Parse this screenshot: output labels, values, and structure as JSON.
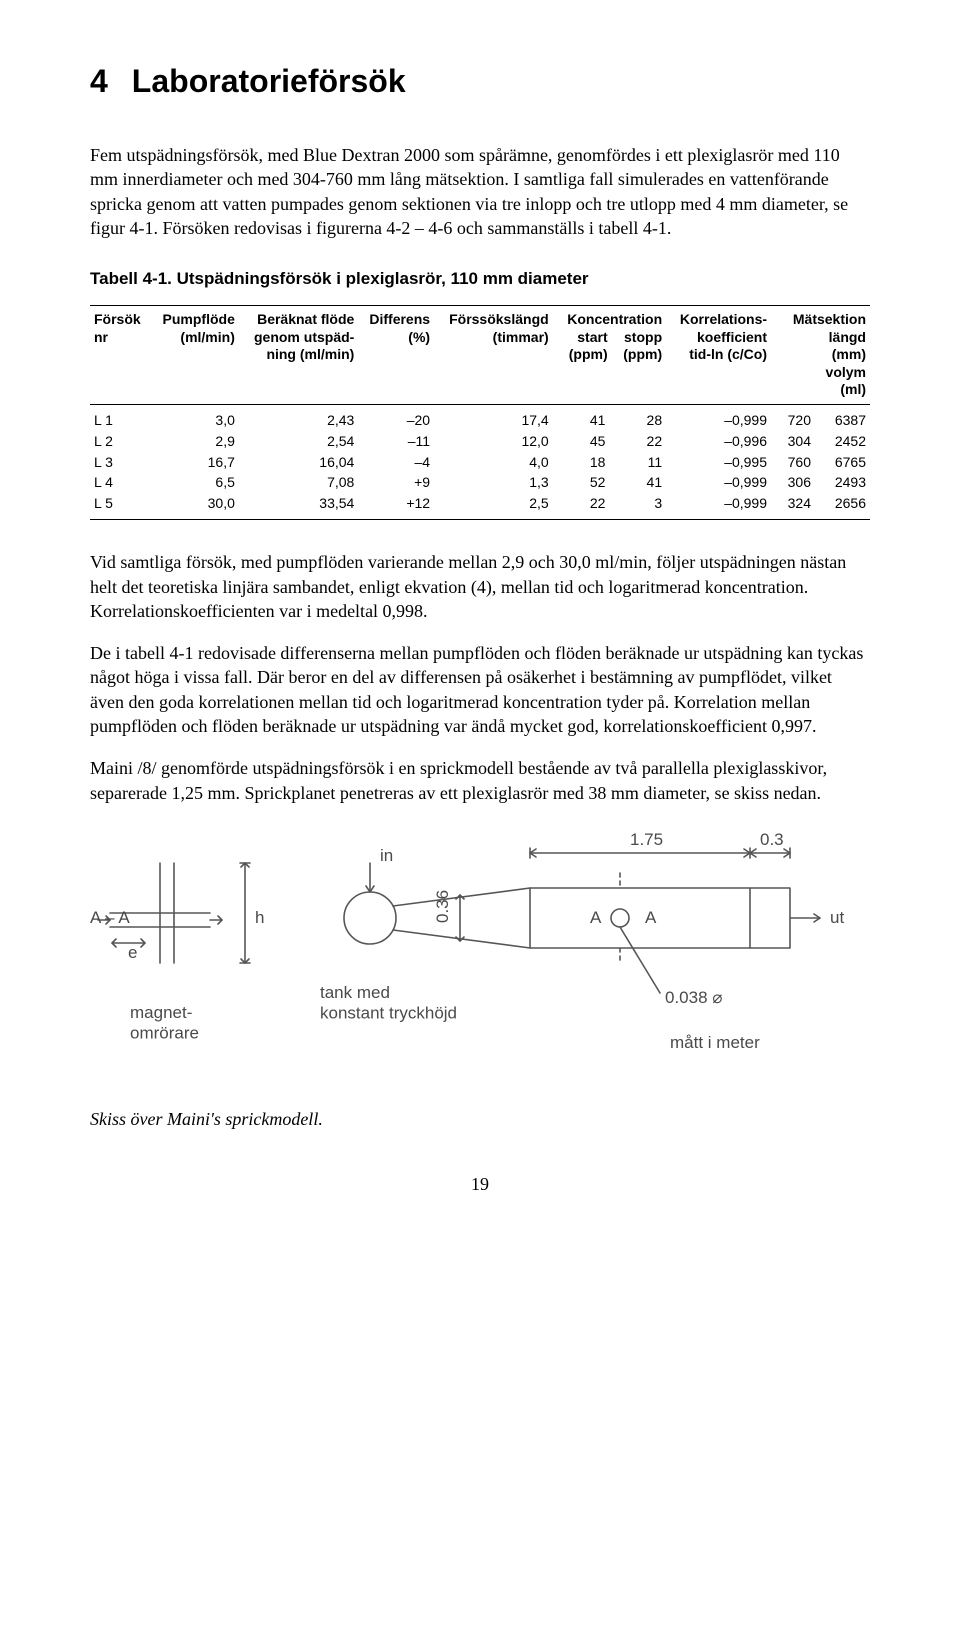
{
  "section": {
    "number": "4",
    "title": "Laboratorieförsök"
  },
  "para1": "Fem utspädningsförsök, med Blue Dextran 2000 som spårämne, genomfördes i ett plexiglasrör med 110 mm innerdiameter och med 304-760 mm lång mätsektion. I samtliga fall simulerades en vattenförande spricka genom att vatten pumpades genom sektionen via tre inlopp och tre utlopp med 4 mm diameter, se figur 4-1. Försöken redovisas i figurerna 4-2 – 4-6 och sammanställs i tabell 4-1.",
  "tableCaption": "Tabell 4-1.  Utspädningsförsök i plexiglasrör, 110 mm diameter",
  "table": {
    "headers": {
      "c1": "Försök\nnr",
      "c2": "Pumpflöde\n(ml/min)",
      "c3": "Beräknat flöde\ngenom utspäd-\nning (ml/min)",
      "c4": "Differens\n(%)",
      "c5": "Förssökslängd\n(timmar)",
      "c6a": "Koncentration",
      "c6b": "start\n(ppm)",
      "c6c": "stopp\n(ppm)",
      "c7": "Korrelations-\nkoefficient\ntid-ln (c/Co)",
      "c8a": "Mätsektion",
      "c8b": "längd\n(mm)",
      "c8c": "volym\n(ml)"
    },
    "rows": [
      {
        "nr": "L 1",
        "pump": "3,0",
        "ber": "2,43",
        "diff": "–20",
        "len": "17,4",
        "start": "41",
        "stopp": "28",
        "korr": "–0,999",
        "lngd": "720",
        "vol": "6387"
      },
      {
        "nr": "L 2",
        "pump": "2,9",
        "ber": "2,54",
        "diff": "–11",
        "len": "12,0",
        "start": "45",
        "stopp": "22",
        "korr": "–0,996",
        "lngd": "304",
        "vol": "2452"
      },
      {
        "nr": "L 3",
        "pump": "16,7",
        "ber": "16,04",
        "diff": "–4",
        "len": "4,0",
        "start": "18",
        "stopp": "11",
        "korr": "–0,995",
        "lngd": "760",
        "vol": "6765"
      },
      {
        "nr": "L 4",
        "pump": "6,5",
        "ber": "7,08",
        "diff": "+9",
        "len": "1,3",
        "start": "52",
        "stopp": "41",
        "korr": "–0,999",
        "lngd": "306",
        "vol": "2493"
      },
      {
        "nr": "L 5",
        "pump": "30,0",
        "ber": "33,54",
        "diff": "+12",
        "len": "2,5",
        "start": "22",
        "stopp": "3",
        "korr": "–0,999",
        "lngd": "324",
        "vol": "2656"
      }
    ]
  },
  "para2": "Vid samtliga försök, med pumpflöden varierande mellan 2,9 och 30,0 ml/min, följer utspädningen nästan helt det teoretiska linjära sambandet, enligt ekvation (4), mellan tid och logaritmerad koncentration. Korrelationskoefficienten var i medeltal 0,998.",
  "para3": "De i tabell 4-1 redovisade differenserna mellan pumpflöden och flöden beräknade ur utspädning kan tyckas något höga i vissa fall. Där beror en del av differensen på osäkerhet i bestämning av pumpflödet, vilket även den goda korrelationen mellan tid och logaritmerad koncentration tyder på. Korrelation mellan pumpflöden och flöden beräknade ur utspädning var ändå mycket god, korrelationskoefficient 0,997.",
  "para4": "Maini /8/ genomförde utspädningsförsök i en sprickmodell bestående av två parallella plexiglasskivor, separerade 1,25 mm. Sprickplanet penetreras av ett plexiglasrör med 38 mm diameter, se skiss nedan.",
  "figure": {
    "labels": {
      "sectionAA": "A – A",
      "e": "e",
      "h": "h",
      "magnet": "magnet-\nomrörare",
      "in": "in",
      "tank": "tank med\nkonstant tryckhöjd",
      "h036": "0.36",
      "dim175": "1.75",
      "dim03": "0.3",
      "markA1": "A",
      "markA2": "A",
      "ut": "ut",
      "dia": "0.038",
      "diaSym": "⌀",
      "matt": "mått  i  meter"
    },
    "style": {
      "stroke": "#565656",
      "stroke_width": 1.6,
      "text_color": "#4a4a4a",
      "font_size": 17
    }
  },
  "figCaption": "Skiss över Maini's sprickmodell.",
  "pageNumber": "19"
}
